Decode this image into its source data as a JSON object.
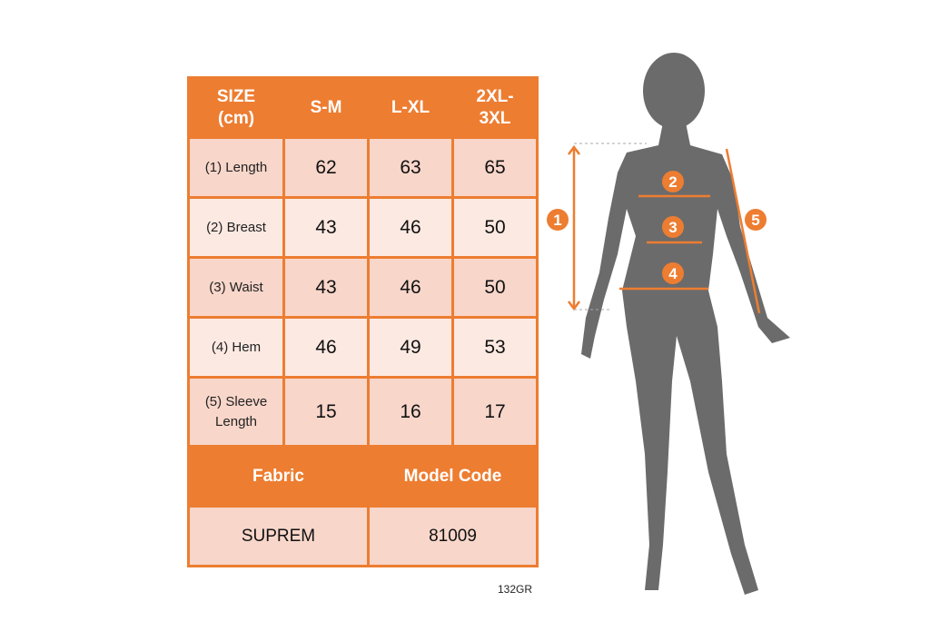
{
  "table": {
    "headers": [
      "SIZE (cm)",
      "S-M",
      "L-XL",
      "2XL-3XL"
    ],
    "rows": [
      {
        "label": "(1) Length",
        "values": [
          "62",
          "63",
          "65"
        ]
      },
      {
        "label": "(2) Breast",
        "values": [
          "43",
          "46",
          "50"
        ]
      },
      {
        "label": "(3) Waist",
        "values": [
          "43",
          "46",
          "50"
        ]
      },
      {
        "label": "(4) Hem",
        "values": [
          "46",
          "49",
          "53"
        ]
      },
      {
        "label": "(5) Sleeve Length",
        "values": [
          "15",
          "16",
          "17"
        ]
      }
    ],
    "footer_headers": [
      "Fabric",
      "Model Code"
    ],
    "footer_values": [
      "SUPREM",
      "81009"
    ]
  },
  "product_code": "132GR",
  "figure": {
    "markers": [
      "1",
      "2",
      "3",
      "4",
      "5"
    ]
  },
  "colors": {
    "accent": "#ed7d31",
    "row_dark": "#f8d6ca",
    "row_light": "#fce9e2",
    "silhouette": "#6b6b6b"
  }
}
